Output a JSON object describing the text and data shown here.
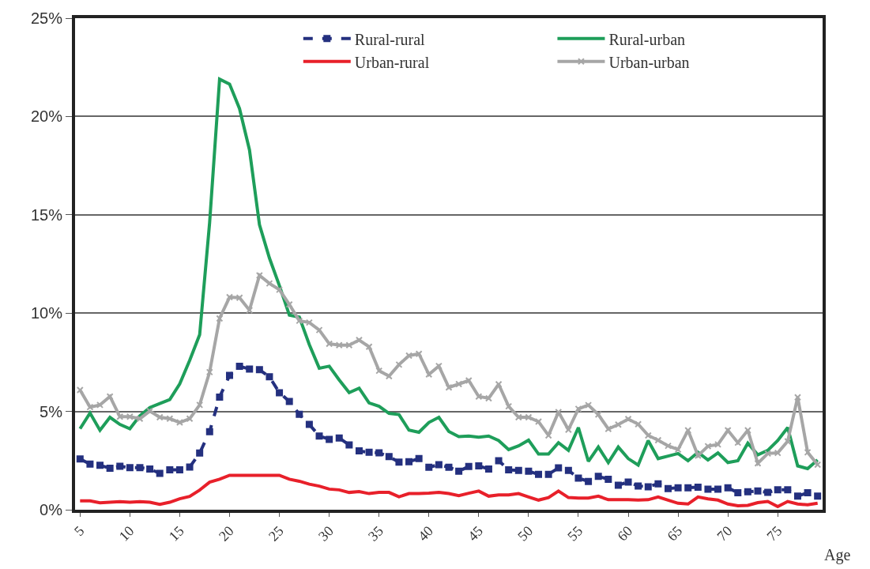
{
  "chart_data": {
    "type": "line",
    "xlabel": "Age",
    "x": [
      5,
      6,
      7,
      8,
      9,
      10,
      11,
      12,
      13,
      14,
      15,
      16,
      17,
      18,
      19,
      20,
      21,
      22,
      23,
      24,
      25,
      26,
      27,
      28,
      29,
      30,
      31,
      32,
      33,
      34,
      35,
      36,
      37,
      38,
      39,
      40,
      41,
      42,
      43,
      44,
      45,
      46,
      47,
      48,
      49,
      50,
      51,
      52,
      53,
      54,
      55,
      56,
      57,
      58,
      59,
      60,
      61,
      62,
      63,
      64,
      65,
      66,
      67,
      68,
      69,
      70,
      71,
      72,
      73,
      74,
      75,
      76,
      77,
      78,
      79
    ],
    "xlim": [
      4.5,
      79.5
    ],
    "xticks": [
      5,
      10,
      15,
      20,
      25,
      30,
      35,
      40,
      45,
      50,
      55,
      60,
      65,
      70,
      75
    ],
    "ylim": [
      0,
      25
    ],
    "yticks": [
      {
        "value": 0,
        "label": "0%"
      },
      {
        "value": 5,
        "label": "5%"
      },
      {
        "value": 10,
        "label": "10%"
      },
      {
        "value": 15,
        "label": "15%"
      },
      {
        "value": 20,
        "label": "20%"
      },
      {
        "value": 25,
        "label": "25%"
      }
    ],
    "grid": "y",
    "legend": "top right",
    "series": [
      {
        "name": "Rural-rural",
        "color": "#24307f",
        "line_style": "dashed",
        "marker": "square",
        "values": [
          2.58,
          2.32,
          2.26,
          2.11,
          2.21,
          2.14,
          2.14,
          2.07,
          1.85,
          2.03,
          2.03,
          2.17,
          2.88,
          3.97,
          5.73,
          6.83,
          7.3,
          7.15,
          7.12,
          6.76,
          5.95,
          5.51,
          4.85,
          4.34,
          3.75,
          3.58,
          3.65,
          3.3,
          2.99,
          2.92,
          2.89,
          2.7,
          2.42,
          2.44,
          2.6,
          2.16,
          2.29,
          2.16,
          1.96,
          2.2,
          2.23,
          2.07,
          2.49,
          2.03,
          2.0,
          1.96,
          1.8,
          1.8,
          2.13,
          2.0,
          1.61,
          1.44,
          1.7,
          1.55,
          1.25,
          1.41,
          1.21,
          1.17,
          1.32,
          1.08,
          1.12,
          1.12,
          1.15,
          1.05,
          1.05,
          1.12,
          0.86,
          0.91,
          0.95,
          0.88,
          1.01,
          1.01,
          0.69,
          0.86,
          0.69
        ]
      },
      {
        "name": "Rural-urban",
        "color": "#1e9e5a",
        "line_style": "solid",
        "marker": "none",
        "values": [
          4.12,
          4.92,
          4.04,
          4.7,
          4.34,
          4.12,
          4.78,
          5.2,
          5.4,
          5.6,
          6.4,
          7.6,
          8.9,
          14.6,
          21.9,
          21.65,
          20.4,
          18.3,
          14.5,
          12.8,
          11.4,
          9.9,
          9.8,
          8.4,
          7.2,
          7.3,
          6.6,
          5.96,
          6.18,
          5.43,
          5.26,
          4.9,
          4.84,
          4.05,
          3.94,
          4.44,
          4.7,
          3.98,
          3.72,
          3.75,
          3.69,
          3.75,
          3.52,
          3.06,
          3.25,
          3.54,
          2.83,
          2.83,
          3.41,
          3.02,
          4.18,
          2.46,
          3.19,
          2.4,
          3.19,
          2.6,
          2.27,
          3.52,
          2.6,
          2.73,
          2.86,
          2.49,
          2.92,
          2.53,
          2.89,
          2.4,
          2.49,
          3.39,
          2.79,
          3.02,
          3.52,
          4.18,
          2.23,
          2.09,
          2.53
        ]
      },
      {
        "name": "Urban-rural",
        "color": "#e8202a",
        "line_style": "solid",
        "marker": "none",
        "values": [
          0.45,
          0.45,
          0.35,
          0.38,
          0.41,
          0.38,
          0.41,
          0.38,
          0.27,
          0.38,
          0.56,
          0.68,
          1.0,
          1.4,
          1.55,
          1.75,
          1.75,
          1.75,
          1.75,
          1.75,
          1.75,
          1.55,
          1.45,
          1.3,
          1.2,
          1.05,
          1.01,
          0.88,
          0.92,
          0.82,
          0.88,
          0.88,
          0.66,
          0.82,
          0.82,
          0.84,
          0.88,
          0.82,
          0.72,
          0.84,
          0.95,
          0.69,
          0.75,
          0.75,
          0.82,
          0.65,
          0.49,
          0.62,
          0.95,
          0.62,
          0.59,
          0.59,
          0.69,
          0.51,
          0.51,
          0.51,
          0.49,
          0.51,
          0.65,
          0.49,
          0.33,
          0.29,
          0.65,
          0.55,
          0.49,
          0.29,
          0.2,
          0.22,
          0.36,
          0.42,
          0.16,
          0.42,
          0.29,
          0.25,
          0.33
        ]
      },
      {
        "name": "Urban-urban",
        "color": "#a6a6a6",
        "line_style": "solid",
        "marker": "cross",
        "values": [
          6.09,
          5.22,
          5.33,
          5.76,
          4.73,
          4.73,
          4.63,
          5.02,
          4.7,
          4.63,
          4.44,
          4.63,
          5.33,
          7.0,
          9.73,
          10.81,
          10.78,
          10.15,
          11.92,
          11.51,
          11.19,
          10.44,
          9.61,
          9.52,
          9.14,
          8.44,
          8.37,
          8.37,
          8.63,
          8.29,
          7.07,
          6.79,
          7.38,
          7.84,
          7.93,
          6.88,
          7.31,
          6.22,
          6.39,
          6.57,
          5.76,
          5.67,
          6.38,
          5.26,
          4.7,
          4.7,
          4.48,
          3.78,
          4.97,
          4.07,
          5.13,
          5.32,
          4.84,
          4.11,
          4.33,
          4.61,
          4.35,
          3.78,
          3.54,
          3.25,
          3.06,
          4.04,
          2.75,
          3.23,
          3.32,
          4.04,
          3.41,
          4.04,
          2.36,
          2.86,
          2.89,
          3.48,
          5.72,
          2.92,
          2.29
        ]
      }
    ]
  }
}
